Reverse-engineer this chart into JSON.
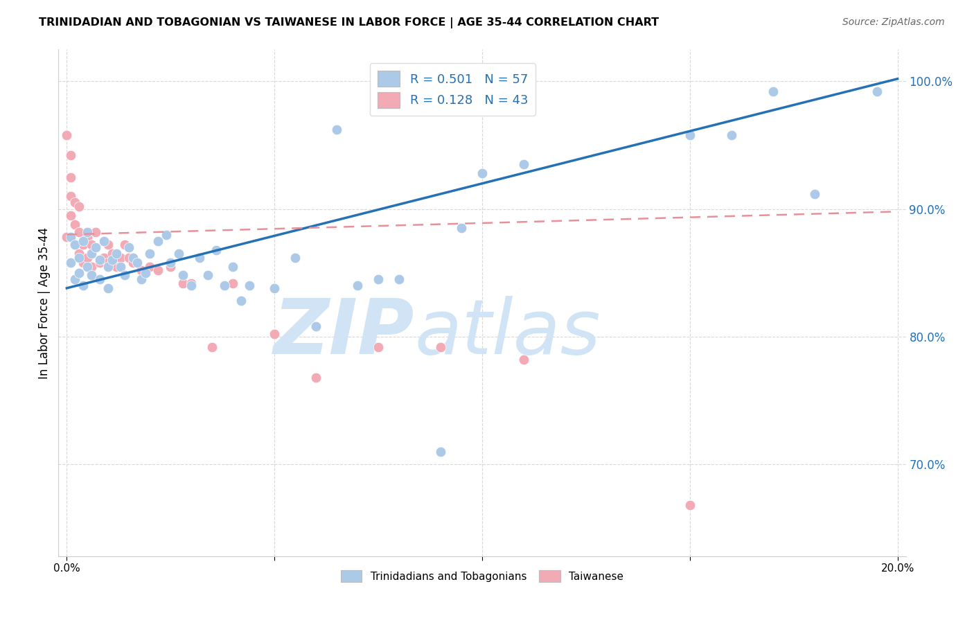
{
  "title": "TRINIDADIAN AND TOBAGONIAN VS TAIWANESE IN LABOR FORCE | AGE 35-44 CORRELATION CHART",
  "source": "Source: ZipAtlas.com",
  "ylabel_label": "In Labor Force | Age 35-44",
  "xlim": [
    -0.002,
    0.202
  ],
  "ylim": [
    0.628,
    1.025
  ],
  "ytick_values": [
    0.7,
    0.8,
    0.9,
    1.0
  ],
  "ytick_labels": [
    "70.0%",
    "80.0%",
    "90.0%",
    "100.0%"
  ],
  "xtick_values": [
    0.0,
    0.05,
    0.1,
    0.15,
    0.2
  ],
  "xtick_labels": [
    "0.0%",
    "",
    "",
    "",
    "20.0%"
  ],
  "R_blue": 0.501,
  "N_blue": 57,
  "R_pink": 0.128,
  "N_pink": 43,
  "blue_dot_color": "#adc9e8",
  "blue_line_color": "#2471b5",
  "pink_dot_color": "#f2aab5",
  "pink_line_color": "#e8909a",
  "tick_color": "#2471b5",
  "watermark_zip": "ZIP",
  "watermark_atlas": "atlas",
  "watermark_color": "#d0e4f5",
  "background_color": "#ffffff",
  "grid_color": "#d8d8d8",
  "blue_scatter_x": [
    0.001,
    0.001,
    0.002,
    0.002,
    0.003,
    0.003,
    0.004,
    0.004,
    0.005,
    0.005,
    0.006,
    0.006,
    0.007,
    0.008,
    0.008,
    0.009,
    0.01,
    0.01,
    0.011,
    0.012,
    0.013,
    0.014,
    0.015,
    0.016,
    0.017,
    0.018,
    0.019,
    0.02,
    0.022,
    0.024,
    0.025,
    0.027,
    0.028,
    0.03,
    0.032,
    0.034,
    0.036,
    0.038,
    0.04,
    0.042,
    0.044,
    0.05,
    0.055,
    0.06,
    0.065,
    0.07,
    0.075,
    0.08,
    0.09,
    0.095,
    0.1,
    0.11,
    0.15,
    0.16,
    0.17,
    0.18,
    0.195
  ],
  "blue_scatter_y": [
    0.878,
    0.858,
    0.872,
    0.845,
    0.862,
    0.85,
    0.875,
    0.84,
    0.882,
    0.855,
    0.865,
    0.848,
    0.87,
    0.86,
    0.845,
    0.875,
    0.855,
    0.838,
    0.86,
    0.865,
    0.855,
    0.848,
    0.87,
    0.862,
    0.858,
    0.845,
    0.85,
    0.865,
    0.875,
    0.88,
    0.858,
    0.865,
    0.848,
    0.84,
    0.862,
    0.848,
    0.868,
    0.84,
    0.855,
    0.828,
    0.84,
    0.838,
    0.862,
    0.808,
    0.962,
    0.84,
    0.845,
    0.845,
    0.71,
    0.885,
    0.928,
    0.935,
    0.958,
    0.958,
    0.992,
    0.912,
    0.992
  ],
  "pink_scatter_x": [
    0.0,
    0.0,
    0.001,
    0.001,
    0.001,
    0.001,
    0.002,
    0.002,
    0.002,
    0.003,
    0.003,
    0.003,
    0.004,
    0.004,
    0.005,
    0.005,
    0.006,
    0.006,
    0.007,
    0.008,
    0.009,
    0.01,
    0.01,
    0.011,
    0.012,
    0.013,
    0.014,
    0.015,
    0.016,
    0.018,
    0.02,
    0.022,
    0.025,
    0.028,
    0.03,
    0.035,
    0.04,
    0.05,
    0.06,
    0.075,
    0.09,
    0.11,
    0.15
  ],
  "pink_scatter_y": [
    0.958,
    0.878,
    0.942,
    0.925,
    0.91,
    0.895,
    0.905,
    0.888,
    0.872,
    0.902,
    0.882,
    0.865,
    0.872,
    0.858,
    0.878,
    0.862,
    0.872,
    0.855,
    0.882,
    0.858,
    0.862,
    0.872,
    0.858,
    0.865,
    0.855,
    0.862,
    0.872,
    0.862,
    0.858,
    0.852,
    0.855,
    0.852,
    0.855,
    0.842,
    0.842,
    0.792,
    0.842,
    0.802,
    0.768,
    0.792,
    0.792,
    0.782,
    0.668
  ],
  "blue_trend_x": [
    0.0,
    0.2
  ],
  "blue_trend_y": [
    0.838,
    1.002
  ],
  "pink_trend_x": [
    0.0,
    0.2
  ],
  "pink_trend_y": [
    0.88,
    0.898
  ]
}
